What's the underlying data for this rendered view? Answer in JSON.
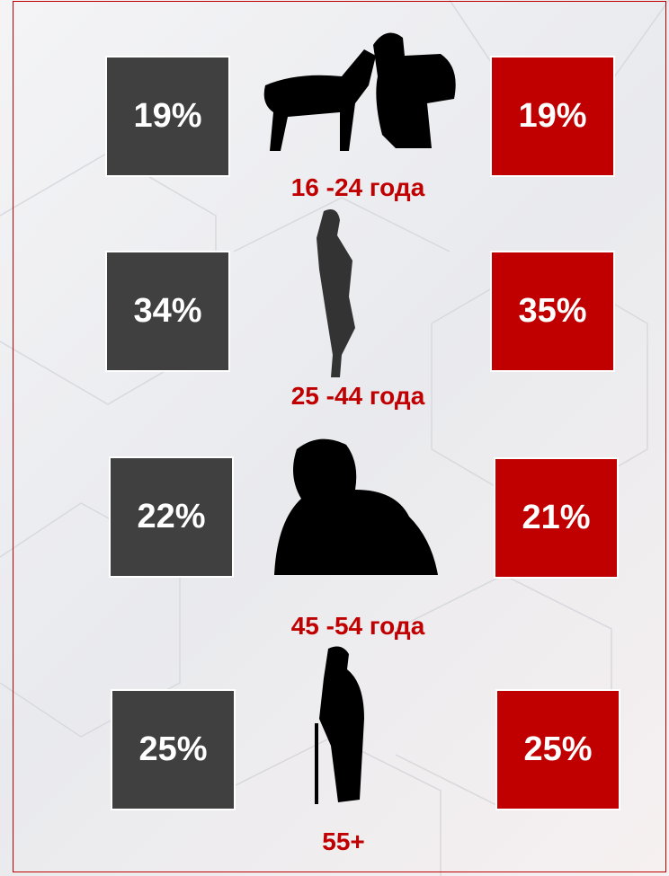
{
  "groups": [
    {
      "left": "19%",
      "right": "19%",
      "label": "16 -24 года"
    },
    {
      "left": "34%",
      "right": "35%",
      "label": "25 -44 года"
    },
    {
      "left": "22%",
      "right": "21%",
      "label": "45 -54 года"
    },
    {
      "left": "25%",
      "right": "25%",
      "label": "55+"
    }
  ]
}
